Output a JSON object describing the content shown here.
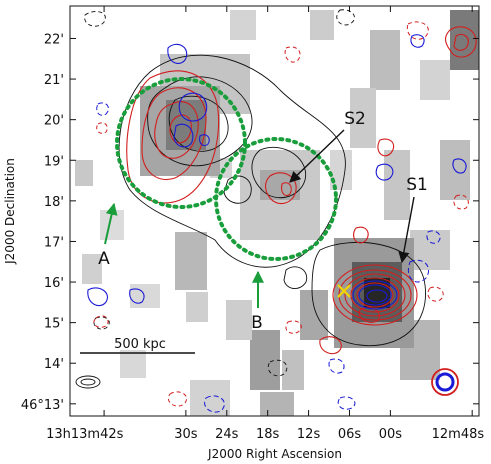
{
  "chart_data": {
    "type": "heatmap",
    "title": "",
    "xlabel": "J2000 Right Ascension",
    "ylabel": "J2000 Declination",
    "x_ticks": [
      {
        "label": "13h13m42s",
        "value_sec": 42
      },
      {
        "label": "30s",
        "value_sec": 30
      },
      {
        "label": "24s",
        "value_sec": 24
      },
      {
        "label": "18s",
        "value_sec": 18
      },
      {
        "label": "12s",
        "value_sec": 12
      },
      {
        "label": "06s",
        "value_sec": 6
      },
      {
        "label": "00s",
        "value_sec": 0
      },
      {
        "label": "12m48s",
        "value_sec": -12
      }
    ],
    "y_ticks": [
      {
        "label": "22'",
        "value_arcmin": 22
      },
      {
        "label": "21'",
        "value_arcmin": 21
      },
      {
        "label": "20'",
        "value_arcmin": 20
      },
      {
        "label": "19'",
        "value_arcmin": 19
      },
      {
        "label": "18'",
        "value_arcmin": 18
      },
      {
        "label": "17'",
        "value_arcmin": 17
      },
      {
        "label": "16'",
        "value_arcmin": 16
      },
      {
        "label": "15'",
        "value_arcmin": 15
      },
      {
        "label": "14'",
        "value_arcmin": 14
      },
      {
        "label": "46°13'",
        "value_arcmin": 13
      }
    ],
    "xlim_sec": [
      47,
      -13
    ],
    "ylim_arcmin": [
      12.7,
      22.8
    ],
    "annotations": [
      {
        "label": "S1",
        "text_ra_sec": -3,
        "text_dec": 18.7,
        "arrow_to_ra": -2.5,
        "arrow_to_dec": 16.5
      },
      {
        "label": "S2",
        "text_ra_sec": 10,
        "text_dec": 19.8,
        "arrow_to_ra": 13,
        "arrow_to_dec": 18.4
      },
      {
        "label": "A",
        "text_ra_sec": 42.5,
        "text_dec": 16.65,
        "arrow_to_ra": 40.5,
        "arrow_to_dec": 18.05
      },
      {
        "label": "B",
        "text_ra_sec": 20.5,
        "text_dec": 14.65,
        "arrow_to_ra": 20.5,
        "arrow_to_dec": 16.5
      }
    ],
    "regions": [
      {
        "name": "A",
        "center_ra_sec": 30.8,
        "center_dec": 19.45,
        "radius_arcmin": 1.55
      },
      {
        "name": "B",
        "center_ra_sec": 16.6,
        "center_dec": 18.15,
        "radius_arcmin": 1.45
      }
    ],
    "scale_bar": {
      "label": "500 kpc"
    },
    "cross_marker": {
      "ra_sec": 4.5,
      "dec": 15.85,
      "color": "#f2d600"
    },
    "colors": {
      "xray_contour": "#d21e1e",
      "radio_contour": "#1a1ad6",
      "optical_contour": "#111111",
      "region": "#1a9e3c",
      "arrow": "#1a9e3c"
    }
  }
}
